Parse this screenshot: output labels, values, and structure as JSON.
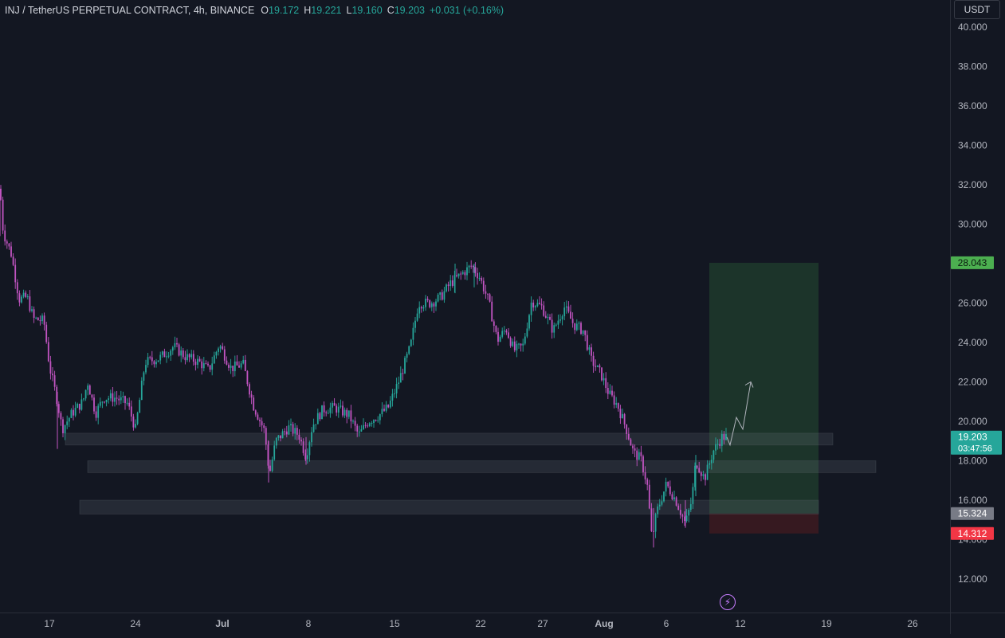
{
  "header": {
    "symbol": "INJ / TetherUS PERPETUAL CONTRACT, 4h, BINANCE",
    "o_label": "O",
    "o_value": "19.172",
    "h_label": "H",
    "h_value": "19.221",
    "l_label": "L",
    "l_value": "19.160",
    "c_label": "C",
    "c_value": "19.203",
    "change": "+0.031 (+0.16%)"
  },
  "currency_button": "USDT",
  "colors": {
    "background": "#131722",
    "up": "#26a69a",
    "down": "#c154c1",
    "profit_zone": "#1f3a2c",
    "loss_zone": "#3b1a20",
    "target_label": "#4caf50",
    "stop_label": "#f23645",
    "entry_label": "#787b86",
    "current_label": "#26a69a"
  },
  "icons": {
    "lightning": "lightning-icon"
  },
  "chart_data": {
    "type": "candlestick",
    "timeframe": "4h",
    "y_axis": {
      "range": [
        10.8,
        41.0
      ],
      "ticks": [
        "40.000",
        "38.000",
        "36.000",
        "34.000",
        "32.000",
        "30.000",
        "26.000",
        "24.000",
        "22.000",
        "20.000",
        "18.000",
        "16.000",
        "14.000",
        "12.000"
      ],
      "tick_values": [
        40,
        38,
        36,
        34,
        32,
        30,
        26,
        24,
        22,
        20,
        18,
        16,
        14,
        12
      ]
    },
    "x_axis": {
      "ticks": [
        "17",
        "24",
        "Jul",
        "8",
        "15",
        "22",
        "27",
        "Aug",
        "6",
        "12",
        "19",
        "26"
      ],
      "bold_ticks": [
        "Jul",
        "Aug"
      ]
    },
    "price_path": [
      [
        0,
        31.8
      ],
      [
        4,
        29.6
      ],
      [
        14,
        28.5
      ],
      [
        24,
        26.2
      ],
      [
        34,
        26.3
      ],
      [
        42,
        25.2
      ],
      [
        55,
        25.1
      ],
      [
        62,
        22.8
      ],
      [
        72,
        21.0
      ],
      [
        78,
        19.6
      ],
      [
        90,
        20.4
      ],
      [
        104,
        21.0
      ],
      [
        110,
        22.0
      ],
      [
        120,
        20.4
      ],
      [
        130,
        21.2
      ],
      [
        145,
        21.2
      ],
      [
        160,
        20.9
      ],
      [
        170,
        19.6
      ],
      [
        182,
        23.0
      ],
      [
        200,
        23.2
      ],
      [
        218,
        23.8
      ],
      [
        232,
        23.3
      ],
      [
        250,
        23.0
      ],
      [
        262,
        22.6
      ],
      [
        275,
        23.9
      ],
      [
        290,
        22.7
      ],
      [
        305,
        22.9
      ],
      [
        318,
        20.8
      ],
      [
        332,
        19.5
      ],
      [
        338,
        17.3
      ],
      [
        346,
        19.0
      ],
      [
        362,
        19.7
      ],
      [
        375,
        19.3
      ],
      [
        384,
        18.2
      ],
      [
        392,
        19.8
      ],
      [
        405,
        20.6
      ],
      [
        420,
        20.7
      ],
      [
        438,
        20.3
      ],
      [
        450,
        19.3
      ],
      [
        462,
        20.0
      ],
      [
        475,
        20.3
      ],
      [
        487,
        20.7
      ],
      [
        500,
        22.0
      ],
      [
        515,
        23.8
      ],
      [
        525,
        26.0
      ],
      [
        540,
        26.0
      ],
      [
        553,
        26.3
      ],
      [
        565,
        27.0
      ],
      [
        580,
        27.5
      ],
      [
        592,
        27.9
      ],
      [
        602,
        27.3
      ],
      [
        613,
        26.1
      ],
      [
        624,
        24.1
      ],
      [
        635,
        24.7
      ],
      [
        645,
        23.6
      ],
      [
        656,
        23.8
      ],
      [
        667,
        26.1
      ],
      [
        680,
        25.8
      ],
      [
        694,
        24.6
      ],
      [
        708,
        25.8
      ],
      [
        720,
        24.9
      ],
      [
        732,
        24.6
      ],
      [
        742,
        23.1
      ],
      [
        754,
        22.4
      ],
      [
        764,
        21.4
      ],
      [
        775,
        20.8
      ],
      [
        786,
        19.6
      ],
      [
        795,
        18.4
      ],
      [
        804,
        18.1
      ],
      [
        812,
        16.8
      ],
      [
        818,
        14.0
      ],
      [
        824,
        15.4
      ],
      [
        836,
        16.8
      ],
      [
        848,
        16.0
      ],
      [
        860,
        14.8
      ],
      [
        868,
        16.0
      ],
      [
        873,
        18.0
      ],
      [
        884,
        17.1
      ],
      [
        895,
        18.5
      ],
      [
        906,
        19.2
      ],
      [
        912,
        19.2
      ]
    ],
    "projection": [
      [
        912,
        19.2
      ],
      [
        916,
        18.8
      ],
      [
        924,
        20.2
      ],
      [
        932,
        19.6
      ],
      [
        942,
        22.0
      ]
    ],
    "zones": [
      {
        "name": "support-zone-1",
        "top": 19.4,
        "bottom": 18.8
      },
      {
        "name": "support-zone-2",
        "top": 18.0,
        "bottom": 17.4
      },
      {
        "name": "support-zone-3",
        "top": 16.0,
        "bottom": 15.3
      }
    ],
    "position": {
      "type": "long",
      "target": 28.043,
      "entry": 15.324,
      "stop": 14.312,
      "target_label": "28.043",
      "entry_label": "15.324",
      "stop_label": "14.312"
    },
    "current_price": {
      "value": 19.203,
      "label": "19.203",
      "countdown": "03:47:56"
    }
  }
}
